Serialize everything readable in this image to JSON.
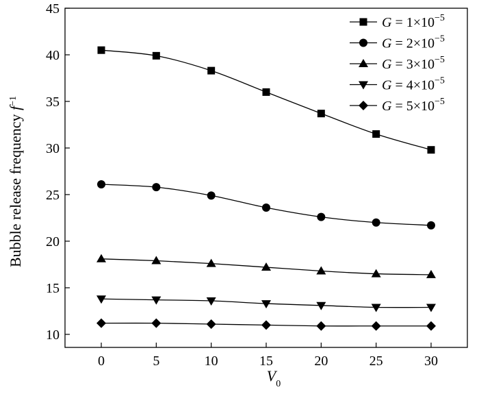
{
  "chart_data": {
    "type": "line",
    "xlabel": "V",
    "xlabel_sub": "0",
    "ylabel": "Bubble release frequency",
    "ylabel_unit_base": "f",
    "ylabel_unit_sup": "−1",
    "xlim": [
      -3.3,
      33.3
    ],
    "ylim": [
      8.6,
      45
    ],
    "xticks": [
      0,
      5,
      10,
      15,
      20,
      25,
      30
    ],
    "yticks": [
      10,
      15,
      20,
      25,
      30,
      35,
      40,
      45
    ],
    "x": [
      0,
      5,
      10,
      15,
      20,
      25,
      30
    ],
    "grid": false,
    "legend_position": "top-right",
    "series": [
      {
        "name": "G = 1×10−5",
        "name_var": "G",
        "name_eq": " = 1×10",
        "name_sup": "−5",
        "marker": "square",
        "values": [
          40.5,
          39.9,
          38.3,
          36.0,
          33.7,
          31.5,
          29.8
        ]
      },
      {
        "name": "G = 2×10−5",
        "name_var": "G",
        "name_eq": " = 2×10",
        "name_sup": "−5",
        "marker": "circle",
        "values": [
          26.1,
          25.8,
          24.9,
          23.6,
          22.6,
          22.0,
          21.7
        ]
      },
      {
        "name": "G = 3×10−5",
        "name_var": "G",
        "name_eq": " = 3×10",
        "name_sup": "−5",
        "marker": "triangle-up",
        "values": [
          18.1,
          17.9,
          17.6,
          17.2,
          16.8,
          16.5,
          16.4
        ]
      },
      {
        "name": "G = 4×10−5",
        "name_var": "G",
        "name_eq": " = 4×10",
        "name_sup": "−5",
        "marker": "triangle-down",
        "values": [
          13.8,
          13.7,
          13.6,
          13.3,
          13.1,
          12.9,
          12.9
        ]
      },
      {
        "name": "G = 5×10−5",
        "name_var": "G",
        "name_eq": " = 5×10",
        "name_sup": "−5",
        "marker": "diamond",
        "values": [
          11.2,
          11.2,
          11.1,
          11.0,
          10.9,
          10.9,
          10.9
        ]
      }
    ]
  }
}
